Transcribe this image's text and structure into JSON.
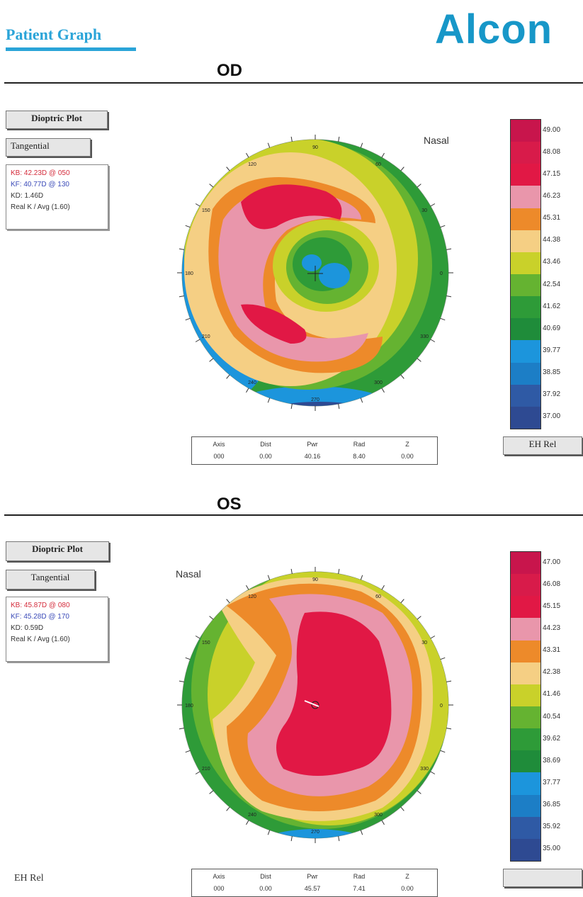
{
  "header": {
    "title": "Patient Graph",
    "logo": "Alcon"
  },
  "od": {
    "label": "OD",
    "plot_button": "Dioptric Plot",
    "mode_button": "Tangential",
    "kb": "KB: 42.23D @ 050",
    "kf": "KF: 40.77D @ 130",
    "kd": "KD:  1.46D",
    "real_k": "Real K / Avg (1.60)",
    "nasal": "Nasal",
    "legend_values": [
      "49.00",
      "48.08",
      "47.15",
      "46.23",
      "45.31",
      "44.38",
      "43.46",
      "42.54",
      "41.62",
      "40.69",
      "39.77",
      "38.85",
      "37.92",
      "37.00"
    ],
    "legend_colors": [
      "#c8154c",
      "#d81b4a",
      "#e11845",
      "#e996ab",
      "#ed8a2a",
      "#f5cf84",
      "#c9d12a",
      "#65b331",
      "#2e9b38",
      "#1f8c3a",
      "#1c95dc",
      "#1c7ec6",
      "#2f5aa5",
      "#2e4a92"
    ],
    "legend_button": "EH Rel",
    "readout": {
      "headers": [
        "Axis",
        "Dist",
        "Pwr",
        "Rad",
        "Z"
      ],
      "values": [
        "000",
        "0.00",
        "40.16",
        "8.40",
        "0.00"
      ]
    },
    "degree_labels": [
      "90",
      "60",
      "30",
      "0",
      "330",
      "300",
      "270",
      "240",
      "210",
      "180",
      "150",
      "120"
    ]
  },
  "os": {
    "label": "OS",
    "plot_button": "Dioptric Plot",
    "mode_button": "Tangential",
    "kb": "KB: 45.87D @ 080",
    "kf": "KF: 45.28D @ 170",
    "kd": "KD:  0.59D",
    "real_k": "Real K / Avg (1.60)",
    "nasal": "Nasal",
    "legend_values": [
      "47.00",
      "46.08",
      "45.15",
      "44.23",
      "43.31",
      "42.38",
      "41.46",
      "40.54",
      "39.62",
      "38.69",
      "37.77",
      "36.85",
      "35.92",
      "35.00"
    ],
    "legend_colors": [
      "#c8154c",
      "#d81b4a",
      "#e11845",
      "#e996ab",
      "#ed8a2a",
      "#f5cf84",
      "#c9d12a",
      "#65b331",
      "#2e9b38",
      "#1f8c3a",
      "#1c95dc",
      "#1c7ec6",
      "#2f5aa5",
      "#2e4a92"
    ],
    "legend_button": "",
    "side_label": "EH Rel",
    "readout": {
      "headers": [
        "Axis",
        "Dist",
        "Pwr",
        "Rad",
        "Z"
      ],
      "values": [
        "000",
        "0.00",
        "45.57",
        "7.41",
        "0.00"
      ]
    },
    "degree_labels": [
      "90",
      "60",
      "30",
      "0",
      "330",
      "300",
      "270",
      "240",
      "210",
      "180",
      "150",
      "120"
    ]
  }
}
